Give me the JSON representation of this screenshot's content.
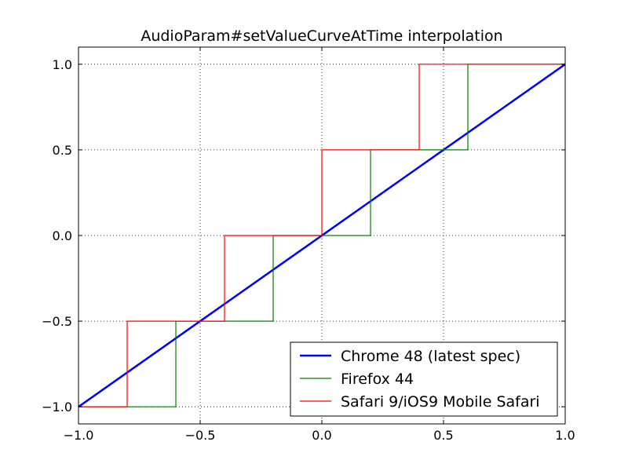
{
  "chart_data": {
    "type": "line",
    "title": "AudioParam#setValueCurveAtTime interpolation",
    "xlabel": "",
    "ylabel": "",
    "xlim": [
      -1.0,
      1.0
    ],
    "ylim": [
      -1.1,
      1.1
    ],
    "grid": true,
    "legend_position": "lower-right",
    "x_ticks": [
      -1.0,
      -0.5,
      0.0,
      0.5,
      1.0
    ],
    "x_tick_labels": [
      "−1.0",
      "−0.5",
      "0.0",
      "0.5",
      "1.0"
    ],
    "y_ticks": [
      -1.0,
      -0.5,
      0.0,
      0.5,
      1.0
    ],
    "y_tick_labels": [
      "−1.0",
      "−0.5",
      "0.0",
      "0.5",
      "1.0"
    ],
    "series": [
      {
        "name": "Chrome 48 (latest spec)",
        "color": "#0000ff",
        "x": [
          -1.0,
          1.0
        ],
        "y": [
          -1.0,
          1.0
        ]
      },
      {
        "name": "Firefox 44",
        "color": "#008000",
        "x": [
          -1.0,
          -0.6,
          -0.6,
          -0.2,
          -0.2,
          0.2,
          0.2,
          0.6,
          0.6,
          1.0
        ],
        "y": [
          -1.0,
          -1.0,
          -0.5,
          -0.5,
          0.0,
          0.0,
          0.5,
          0.5,
          1.0,
          1.0
        ]
      },
      {
        "name": "Safari 9/iOS9 Mobile Safari",
        "color": "#ff0000",
        "x": [
          -1.0,
          -0.8,
          -0.8,
          -0.4,
          -0.4,
          0.0,
          0.0,
          0.4,
          0.4,
          1.0
        ],
        "y": [
          -1.0,
          -1.0,
          -0.5,
          -0.5,
          0.0,
          0.0,
          0.5,
          0.5,
          1.0,
          1.0
        ]
      }
    ]
  }
}
